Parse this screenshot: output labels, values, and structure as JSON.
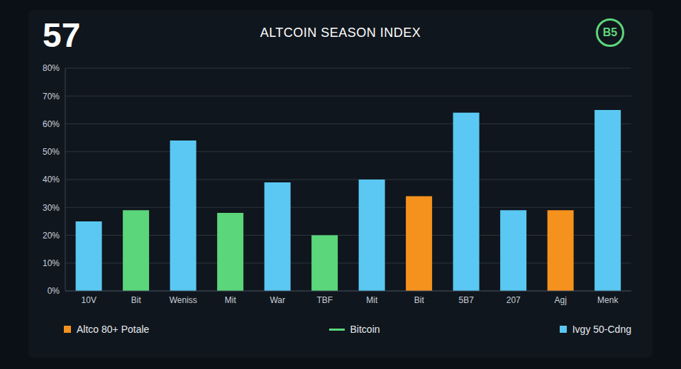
{
  "chart_data": {
    "type": "bar",
    "title": "ALTCOIN SEASON INDEX",
    "annotations": [
      "57",
      "B5"
    ],
    "categories": [
      "10V",
      "Bit",
      "Weniss",
      "Mit",
      "War",
      "TBF",
      "Mit",
      "Bit",
      "5B7",
      "207",
      "Agj",
      "Menk"
    ],
    "series": [
      {
        "name": "Altco 80+ Potale",
        "color": "#f5921e",
        "marker": "square",
        "values": [
          null,
          null,
          null,
          null,
          null,
          null,
          null,
          34,
          null,
          null,
          29,
          null
        ]
      },
      {
        "name": "Bitcoin",
        "color": "#5cd67a",
        "marker": "line",
        "values": [
          null,
          29,
          null,
          28,
          null,
          20,
          null,
          null,
          null,
          null,
          null,
          null
        ]
      },
      {
        "name": "Ivgy 50-Cdng",
        "color": "#5ac8f2",
        "marker": "square",
        "values": [
          25,
          null,
          54,
          null,
          39,
          null,
          40,
          null,
          64,
          29,
          null,
          65
        ]
      }
    ],
    "ylim": [
      0,
      80
    ],
    "yticks": [
      {
        "value": 0,
        "label": "0%"
      },
      {
        "value": 10,
        "label": "10%"
      },
      {
        "value": 20,
        "label": "20%"
      },
      {
        "value": 30,
        "label": "30%"
      },
      {
        "value": 40,
        "label": "40%"
      },
      {
        "value": 50,
        "label": "50%"
      },
      {
        "value": 60,
        "label": "60%"
      },
      {
        "value": 70,
        "label": "70%"
      },
      {
        "value": 80,
        "label": "80%"
      }
    ],
    "grid": true,
    "legend": "bottom"
  }
}
